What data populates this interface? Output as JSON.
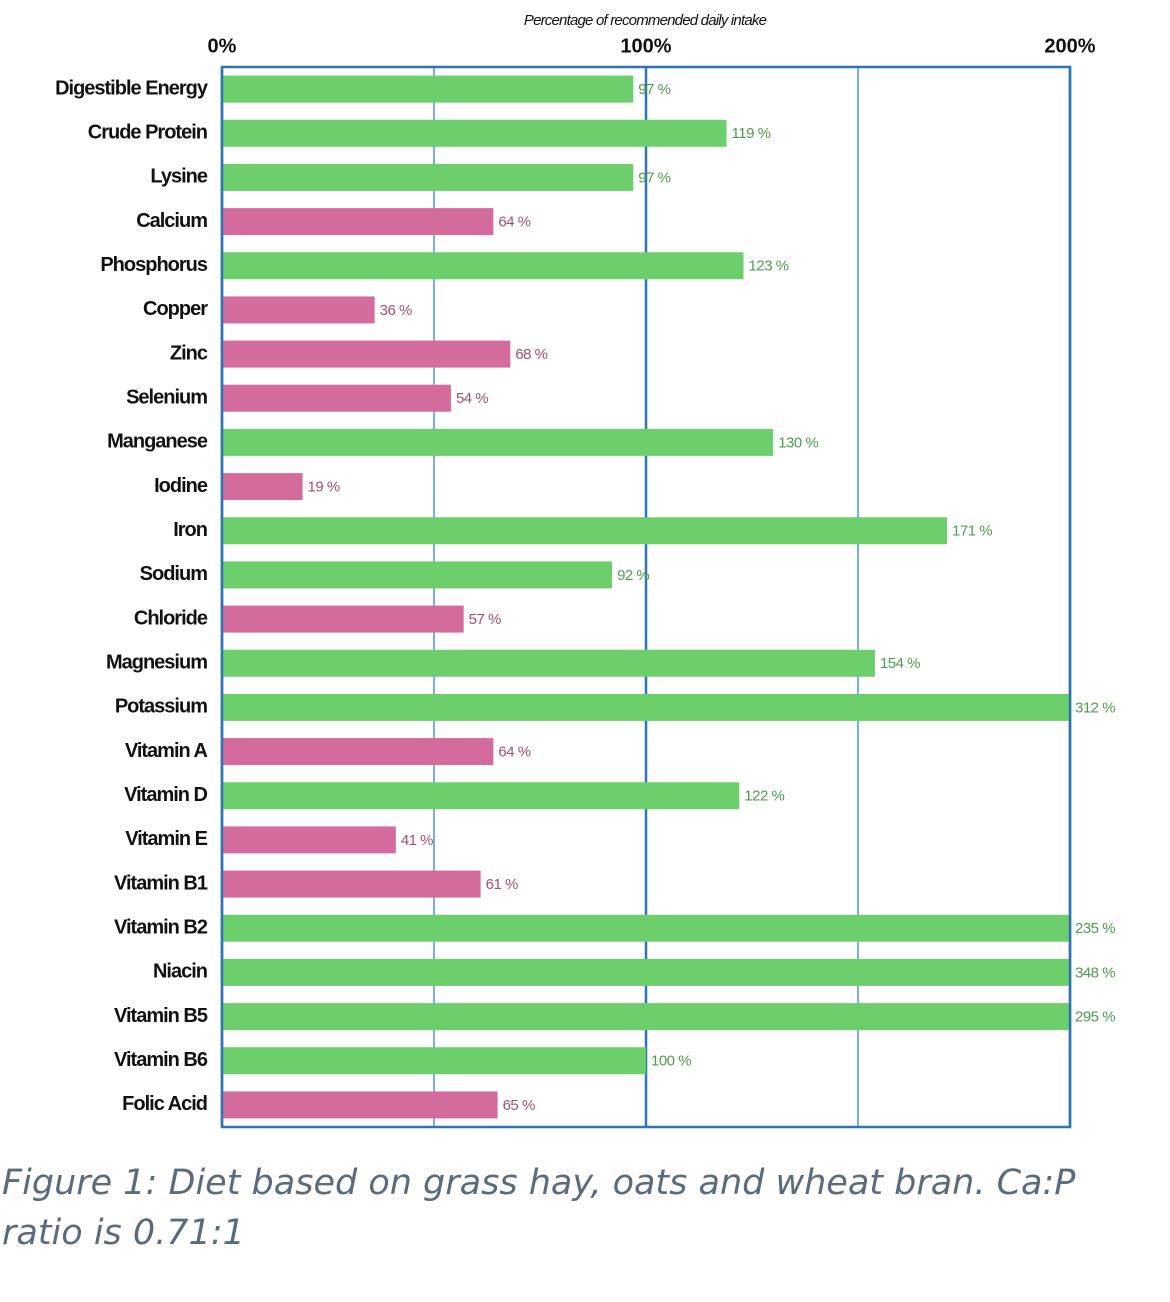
{
  "chart_data": {
    "type": "hbar",
    "title": "Percentage of recommended daily intake",
    "categories": [
      "Digestible Energy",
      "Crude Protein",
      "Lysine",
      "Calcium",
      "Phosphorus",
      "Copper",
      "Zinc",
      "Selenium",
      "Manganese",
      "Iodine",
      "Iron",
      "Sodium",
      "Chloride",
      "Magnesium",
      "Potassium",
      "Vitamin A",
      "Vitamin D",
      "Vitamin E",
      "Vitamin B1",
      "Vitamin B2",
      "Niacin",
      "Vitamin B5",
      "Vitamin B6",
      "Folic Acid"
    ],
    "values": [
      97,
      119,
      97,
      64,
      123,
      36,
      68,
      54,
      130,
      19,
      171,
      92,
      57,
      154,
      312,
      64,
      122,
      41,
      61,
      235,
      348,
      295,
      100,
      65
    ],
    "value_labels": [
      "97 %",
      "119 %",
      "97 %",
      "64 %",
      "123 %",
      "36 %",
      "68 %",
      "54 %",
      "130 %",
      "19 %",
      "171 %",
      "92 %",
      "57 %",
      "154 %",
      "312 %",
      "64 %",
      "122 %",
      "41 %",
      "61 %",
      "235 %",
      "348 %",
      "295 %",
      "100 %",
      "65 %"
    ],
    "colors": [
      "#6ccf6c",
      "#6ccf6c",
      "#6ccf6c",
      "#d36c9c",
      "#6ccf6c",
      "#d36c9c",
      "#d36c9c",
      "#d36c9c",
      "#6ccf6c",
      "#d36c9c",
      "#6ccf6c",
      "#6ccf6c",
      "#d36c9c",
      "#6ccf6c",
      "#6ccf6c",
      "#d36c9c",
      "#6ccf6c",
      "#d36c9c",
      "#d36c9c",
      "#6ccf6c",
      "#6ccf6c",
      "#6ccf6c",
      "#6ccf6c",
      "#d36c9c"
    ],
    "xlim": [
      0,
      200
    ],
    "xticks": [
      {
        "value": 0,
        "label": "0%"
      },
      {
        "value": 100,
        "label": "100%"
      },
      {
        "value": 200,
        "label": "200%"
      }
    ],
    "xminor_grid": [
      50,
      150
    ],
    "grid": true,
    "caption": "Figure 1: Diet based on grass hay, oats and wheat bran. Ca:P ratio is 0.71:1"
  }
}
